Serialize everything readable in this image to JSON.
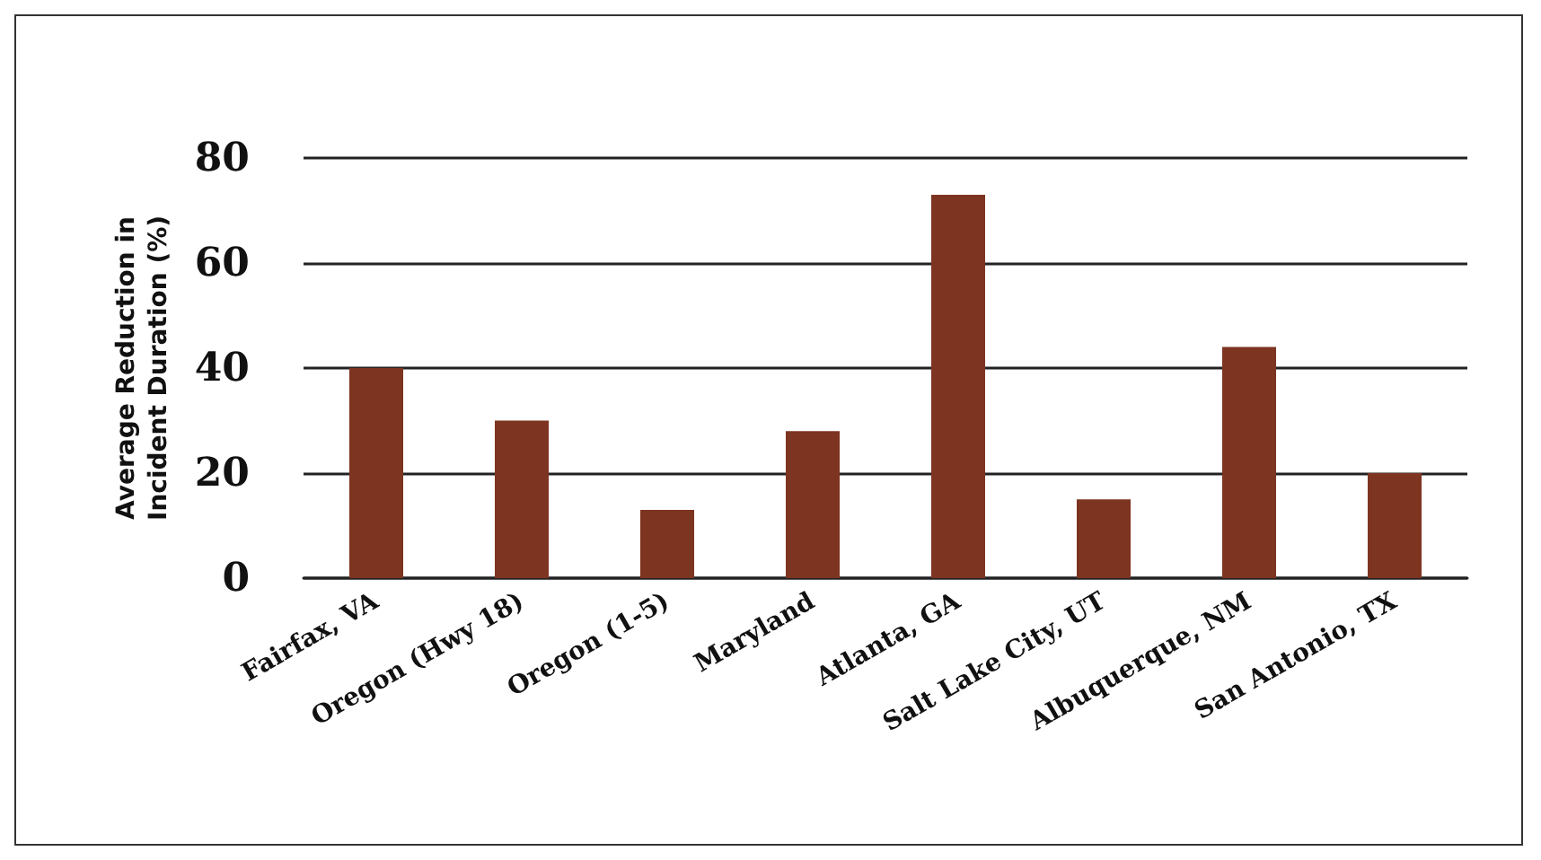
{
  "chart_data": {
    "type": "bar",
    "ylabel": "Average Reduction in\nIncident Duration (%)",
    "categories": [
      "Fairfax, VA",
      "Oregon (Hwy 18)",
      "Oregon (1-5)",
      "Maryland",
      "Atlanta, GA",
      "Salt Lake City, UT",
      "Albuquerque, NM",
      "San Antonio, TX"
    ],
    "values": [
      40,
      30,
      13,
      28,
      73,
      15,
      44,
      20
    ],
    "color": "#7d3420",
    "ylim": [
      0,
      80
    ],
    "yticks": [
      0,
      20,
      40,
      60,
      80
    ],
    "grid": "y"
  }
}
